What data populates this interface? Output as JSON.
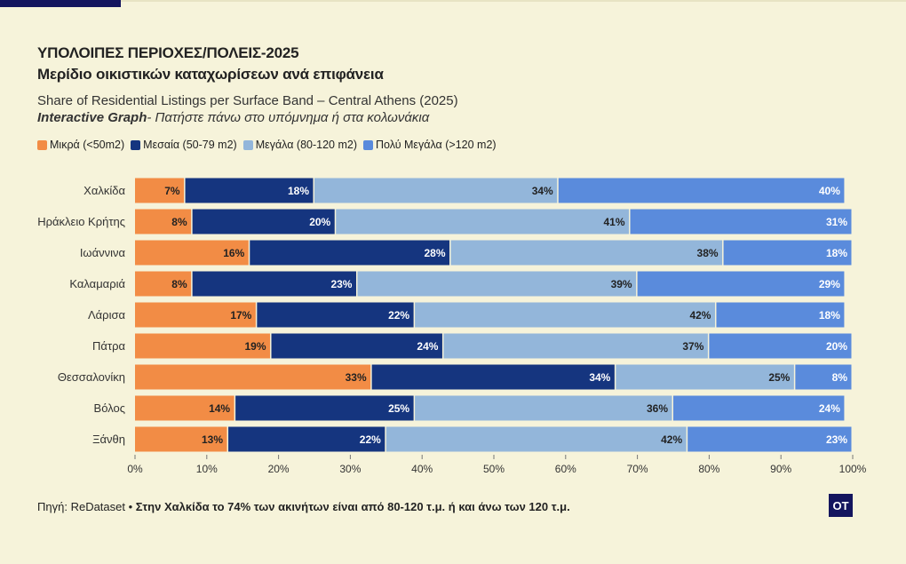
{
  "header": {
    "title_line1": "ΥΠΟΛΟΙΠΕΣ ΠΕΡΙΟΧΕΣ/ΠΟΛΕΙΣ-2025",
    "title_line2": "Μερίδιο οικιστικών καταχωρίσεων ανά επιφάνεια",
    "subtitle": "Share of Residential Listings per Surface Band – Central Athens (2025)",
    "interactive_bold": "Interactive Graph",
    "interactive_rest": "- Πατήστε πάνω στο υπόμνημα ή στα κολωνάκια"
  },
  "colors": {
    "small": "#f28c45",
    "medium": "#15357f",
    "large": "#93b6da",
    "xlarge": "#5a8bdc",
    "background": "#f6f3da"
  },
  "chart_data": {
    "type": "bar",
    "orientation": "horizontal",
    "stacked": true,
    "normalized": true,
    "categories": [
      "Χαλκίδα",
      "Ηράκλειο Κρήτης",
      "Ιωάννινα",
      "Καλαμαριά",
      "Λάρισα",
      "Πάτρα",
      "Θεσσαλονίκη",
      "Βόλος",
      "Ξάνθη"
    ],
    "series": [
      {
        "name": "Μικρά (<50m2)",
        "color": "#f28c45",
        "label_color": "#222222",
        "values": [
          7,
          8,
          16,
          8,
          17,
          19,
          33,
          14,
          13
        ]
      },
      {
        "name": "Μεσαία (50-79 m2)",
        "color": "#15357f",
        "label_color": "#ffffff",
        "values": [
          18,
          20,
          28,
          23,
          22,
          24,
          34,
          25,
          22
        ]
      },
      {
        "name": "Μεγάλα (80-120 m2)",
        "color": "#93b6da",
        "label_color": "#222222",
        "values": [
          34,
          41,
          38,
          39,
          42,
          37,
          25,
          36,
          42
        ]
      },
      {
        "name": "Πολύ Μεγάλα (>120 m2)",
        "color": "#5a8bdc",
        "label_color": "#ffffff",
        "values": [
          40,
          31,
          18,
          29,
          18,
          20,
          8,
          24,
          23
        ]
      }
    ],
    "xlim": [
      0,
      100
    ],
    "xticks": [
      "0%",
      "10%",
      "20%",
      "30%",
      "40%",
      "50%",
      "60%",
      "70%",
      "80%",
      "90%",
      "100%"
    ],
    "value_suffix": "%",
    "grid": false,
    "legend_position": "top-left"
  },
  "footer": {
    "source": "Πηγή: ReDataset",
    "separator": " • ",
    "note": "Στην Χαλκίδα το 74% των ακινήτων είναι από 80-120 τ.μ. ή και άνω των 120 τ.μ."
  },
  "logo": {
    "text": "OT"
  }
}
